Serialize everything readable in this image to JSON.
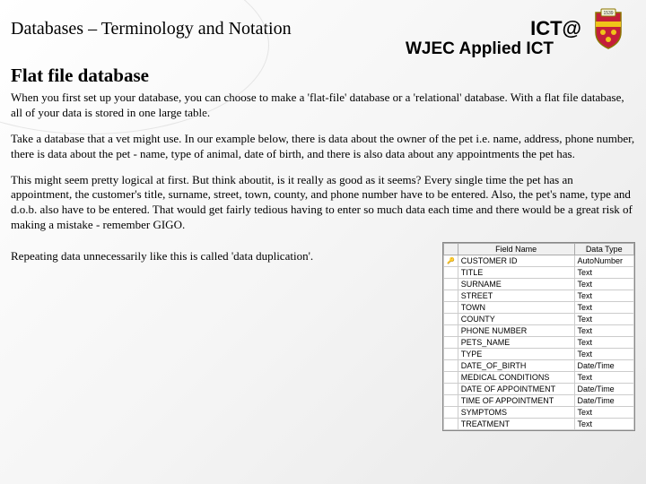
{
  "header": {
    "title_left": "Databases – Terminology and Notation",
    "ict_at": "ICT@",
    "wjec_line": "WJEC Applied ICT",
    "crest": {
      "shield_color": "#c41e3a",
      "stripe_color": "#f0c419",
      "year": "1539"
    }
  },
  "subtitle": "Flat file database",
  "paragraphs": {
    "p1": "When you first set up your database, you can choose to make a 'flat-file' database or a 'relational' database. With a flat file database, all of your data is stored in one large table.",
    "p2": "Take a database that a vet might use. In our example below, there is data about the owner of the pet i.e. name, address, phone number, there is data about the pet - name, type of animal, date of birth, and there is also data about any appointments the pet has.",
    "p3": "This might seem pretty logical at first. But think aboutit, is it really as good as it seems? Every single time the pet has an appointment, the customer's title, surname, street, town, county, and phone number have to be entered. Also, the pet's name, type and d.o.b. also have to be entered. That would get fairly tedious having to enter so much data each time and there would be a great risk of making a mistake - remember GIGO.",
    "p4": "Repeating data unnecessarily like this is called 'data duplication'."
  },
  "table": {
    "headers": [
      "",
      "Field Name",
      "Data Type"
    ],
    "key_row_index": 0,
    "key_symbol": "🔑",
    "rows": [
      [
        "CUSTOMER ID",
        "AutoNumber"
      ],
      [
        "TITLE",
        "Text"
      ],
      [
        "SURNAME",
        "Text"
      ],
      [
        "STREET",
        "Text"
      ],
      [
        "TOWN",
        "Text"
      ],
      [
        "COUNTY",
        "Text"
      ],
      [
        "PHONE NUMBER",
        "Text"
      ],
      [
        "PETS_NAME",
        "Text"
      ],
      [
        "TYPE",
        "Text"
      ],
      [
        "DATE_OF_BIRTH",
        "Date/Time"
      ],
      [
        "MEDICAL CONDITIONS",
        "Text"
      ],
      [
        "DATE OF APPOINTMENT",
        "Date/Time"
      ],
      [
        "TIME OF APPOINTMENT",
        "Date/Time"
      ],
      [
        "SYMPTOMS",
        "Text"
      ],
      [
        "TREATMENT",
        "Text"
      ]
    ]
  }
}
